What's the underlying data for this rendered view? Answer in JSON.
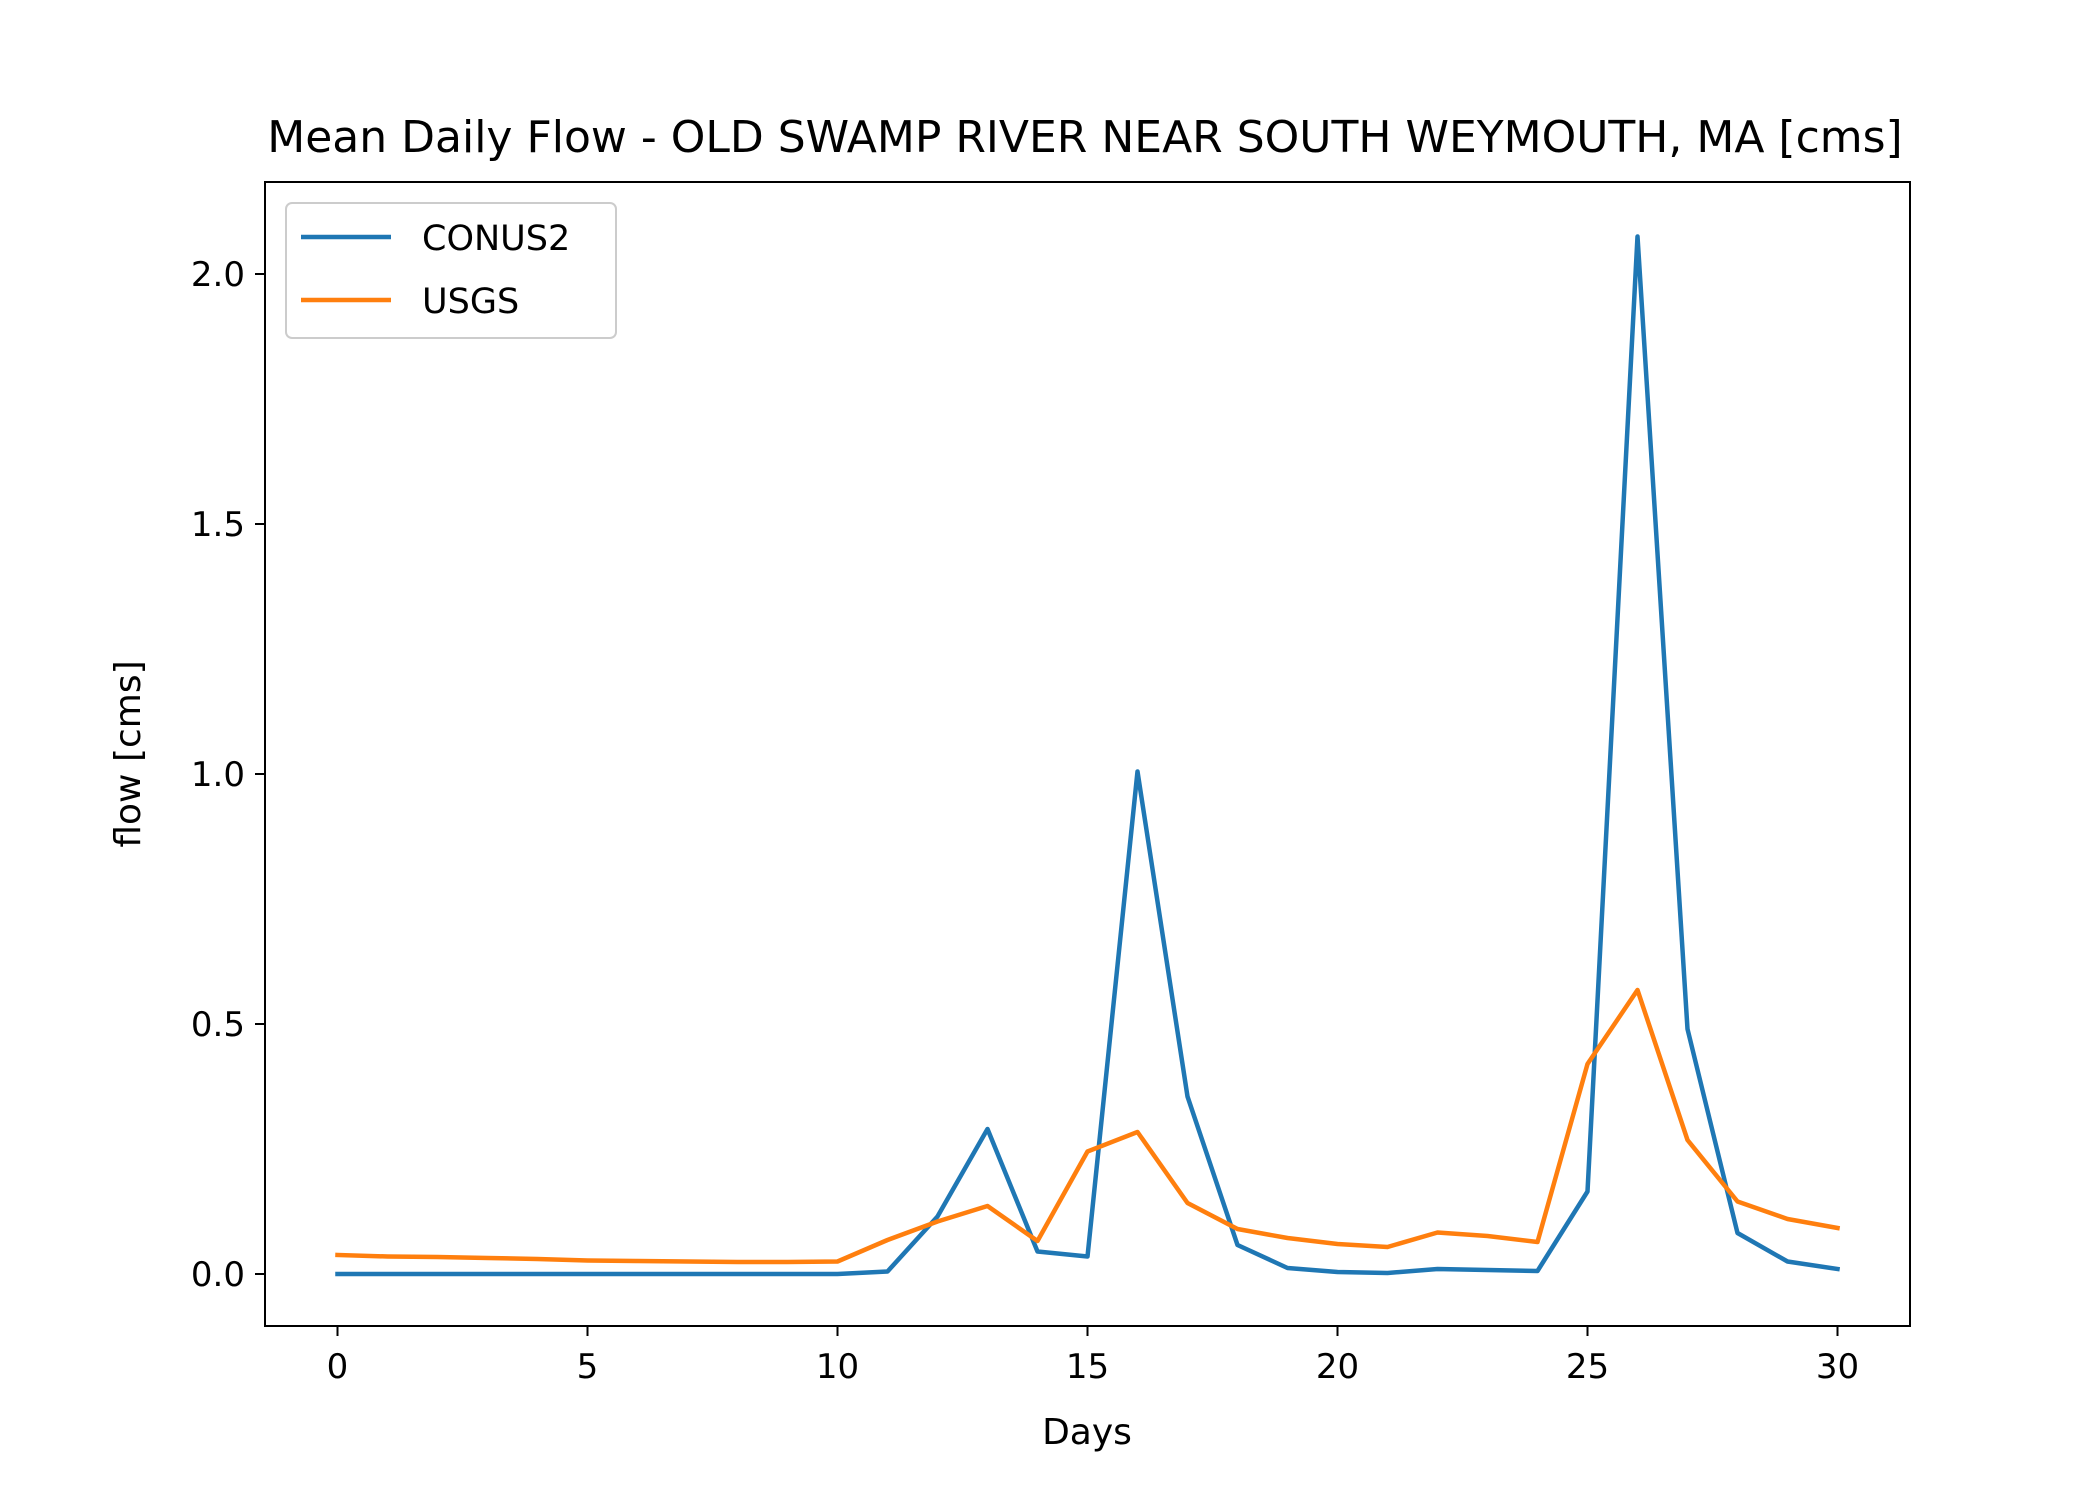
{
  "chart_data": {
    "type": "line",
    "title": "Mean Daily Flow - OLD SWAMP RIVER NEAR SOUTH WEYMOUTH, MA [cms]",
    "xlabel": "Days",
    "ylabel": "flow [cms]",
    "xlim": [
      -1.45,
      31.45
    ],
    "ylim": [
      -0.104,
      2.184
    ],
    "xticks": [
      0,
      5,
      10,
      15,
      20,
      25,
      30
    ],
    "xtick_labels": [
      "0",
      "5",
      "10",
      "15",
      "20",
      "25",
      "30"
    ],
    "yticks": [
      0.0,
      0.5,
      1.0,
      1.5,
      2.0
    ],
    "ytick_labels": [
      "0.0",
      "0.5",
      "1.0",
      "1.5",
      "2.0"
    ],
    "grid": false,
    "legend_position": "top-left",
    "x": [
      0,
      1,
      2,
      3,
      4,
      5,
      6,
      7,
      8,
      9,
      10,
      11,
      12,
      13,
      14,
      15,
      16,
      17,
      18,
      19,
      20,
      21,
      22,
      23,
      24,
      25,
      26,
      27,
      28,
      29,
      30
    ],
    "series": [
      {
        "name": "CONUS2",
        "color": "#1f77b4",
        "values": [
          0.0,
          0.0,
          0.0,
          0.0,
          0.0,
          0.0,
          0.0,
          0.0,
          0.0,
          0.0,
          0.0,
          0.005,
          0.115,
          0.29,
          0.045,
          0.035,
          1.005,
          0.355,
          0.058,
          0.012,
          0.004,
          0.002,
          0.01,
          0.008,
          0.006,
          0.165,
          2.075,
          0.49,
          0.082,
          0.025,
          0.01
        ]
      },
      {
        "name": "USGS",
        "color": "#ff7f0e",
        "values": [
          0.038,
          0.035,
          0.034,
          0.032,
          0.03,
          0.027,
          0.026,
          0.025,
          0.024,
          0.024,
          0.025,
          0.068,
          0.105,
          0.136,
          0.066,
          0.245,
          0.284,
          0.142,
          0.09,
          0.072,
          0.06,
          0.054,
          0.083,
          0.076,
          0.064,
          0.42,
          0.568,
          0.268,
          0.145,
          0.11,
          0.092
        ]
      }
    ]
  }
}
